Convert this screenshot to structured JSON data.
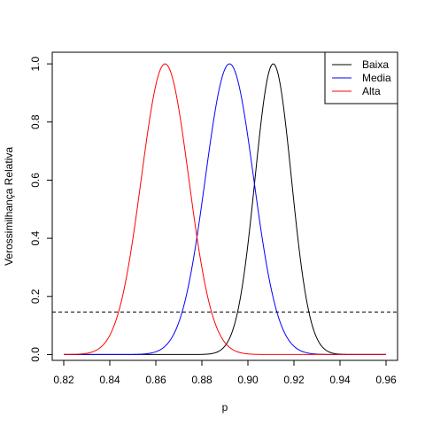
{
  "chart_data": {
    "type": "line",
    "title": "",
    "xlabel": "p",
    "ylabel": "Verossimilhança Relativa",
    "xlim": [
      0.815,
      0.965
    ],
    "ylim": [
      -0.02,
      1.04
    ],
    "x_ticks": [
      0.82,
      0.84,
      0.86,
      0.88,
      0.9,
      0.92,
      0.94,
      0.96
    ],
    "x_tick_labels": [
      "0.82",
      "0.84",
      "0.86",
      "0.88",
      "0.90",
      "0.92",
      "0.94",
      "0.96"
    ],
    "y_ticks": [
      0.0,
      0.2,
      0.4,
      0.6,
      0.8,
      1.0
    ],
    "y_tick_labels": [
      "0.0",
      "0.2",
      "0.4",
      "0.6",
      "0.8",
      "1.0"
    ],
    "grid": false,
    "legend_position": "top-right",
    "reference_line": {
      "y": 0.1465,
      "style": "dashed",
      "color": "#000000"
    },
    "series": [
      {
        "name": "Baixa",
        "color": "#000000",
        "mode": 0.911,
        "sd": 0.0079,
        "x_range": [
          0.82,
          0.96
        ]
      },
      {
        "name": "Media",
        "color": "#0000ff",
        "mode": 0.892,
        "sd": 0.0105,
        "x_range": [
          0.82,
          0.96
        ]
      },
      {
        "name": "Alta",
        "color": "#ff0000",
        "mode": 0.864,
        "sd": 0.0103,
        "x_range": [
          0.82,
          0.96
        ]
      }
    ]
  }
}
